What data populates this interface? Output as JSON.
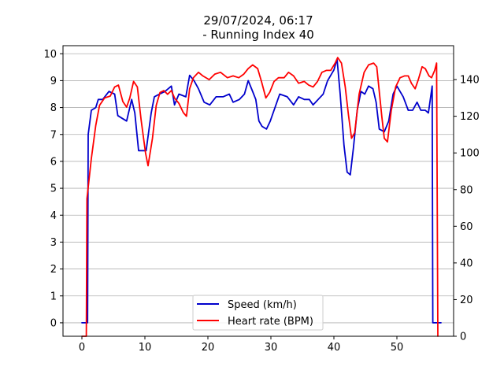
{
  "chart_data": {
    "type": "line",
    "title": "29/07/2024, 06:17",
    "subtitle": "- Running Index 40",
    "xlabel": "",
    "ylabel": "",
    "xlim": [
      -3,
      59
    ],
    "ylim_left": [
      -0.5,
      10.3
    ],
    "ylim_right": [
      0,
      158.5
    ],
    "x_ticks": [
      0,
      10,
      20,
      30,
      40,
      50
    ],
    "y_ticks_left": [
      0,
      1,
      2,
      3,
      4,
      5,
      6,
      7,
      8,
      9,
      10
    ],
    "y_ticks_right": [
      0,
      20,
      40,
      60,
      80,
      100,
      120,
      140
    ],
    "grid": "horizontal (left axis)",
    "legend_position": "bottom-center",
    "series": [
      {
        "name": "Speed (km/h)",
        "axis": "left",
        "color": "#0000cc",
        "points": [
          [
            0,
            0
          ],
          [
            0.9,
            0
          ],
          [
            1.0,
            7.0
          ],
          [
            1.5,
            7.9
          ],
          [
            2.2,
            8.0
          ],
          [
            2.6,
            8.3
          ],
          [
            3.3,
            8.3
          ],
          [
            4.3,
            8.6
          ],
          [
            5.2,
            8.5
          ],
          [
            5.7,
            7.7
          ],
          [
            6.4,
            7.6
          ],
          [
            7.1,
            7.5
          ],
          [
            7.9,
            8.3
          ],
          [
            8.4,
            7.8
          ],
          [
            9.0,
            6.4
          ],
          [
            9.5,
            6.4
          ],
          [
            10.2,
            6.4
          ],
          [
            11.0,
            7.8
          ],
          [
            11.5,
            8.4
          ],
          [
            12.3,
            8.5
          ],
          [
            13.2,
            8.6
          ],
          [
            14.2,
            8.8
          ],
          [
            14.7,
            8.1
          ],
          [
            15.4,
            8.5
          ],
          [
            16.5,
            8.4
          ],
          [
            17.1,
            9.2
          ],
          [
            17.8,
            9.0
          ],
          [
            18.5,
            8.7
          ],
          [
            19.4,
            8.2
          ],
          [
            20.3,
            8.1
          ],
          [
            21.3,
            8.4
          ],
          [
            22.4,
            8.4
          ],
          [
            23.4,
            8.5
          ],
          [
            24.0,
            8.2
          ],
          [
            25.0,
            8.3
          ],
          [
            25.8,
            8.5
          ],
          [
            26.4,
            9.0
          ],
          [
            27.1,
            8.6
          ],
          [
            27.6,
            8.3
          ],
          [
            28.1,
            7.5
          ],
          [
            28.6,
            7.3
          ],
          [
            29.3,
            7.2
          ],
          [
            29.9,
            7.5
          ],
          [
            30.5,
            7.9
          ],
          [
            31.4,
            8.5
          ],
          [
            32.6,
            8.4
          ],
          [
            33.6,
            8.1
          ],
          [
            34.4,
            8.4
          ],
          [
            35.3,
            8.3
          ],
          [
            36.1,
            8.3
          ],
          [
            36.7,
            8.1
          ],
          [
            37.5,
            8.3
          ],
          [
            38.3,
            8.5
          ],
          [
            39.0,
            9.0
          ],
          [
            40.0,
            9.4
          ],
          [
            40.5,
            9.8
          ],
          [
            41.0,
            8.5
          ],
          [
            41.6,
            6.6
          ],
          [
            42.1,
            5.6
          ],
          [
            42.6,
            5.5
          ],
          [
            43.1,
            6.5
          ],
          [
            43.7,
            7.9
          ],
          [
            44.3,
            8.6
          ],
          [
            44.9,
            8.5
          ],
          [
            45.5,
            8.8
          ],
          [
            46.2,
            8.7
          ],
          [
            46.7,
            8.2
          ],
          [
            47.2,
            7.2
          ],
          [
            48.0,
            7.1
          ],
          [
            48.7,
            7.5
          ],
          [
            49.4,
            8.5
          ],
          [
            50.0,
            8.8
          ],
          [
            51.0,
            8.4
          ],
          [
            51.8,
            7.9
          ],
          [
            52.5,
            7.9
          ],
          [
            53.2,
            8.2
          ],
          [
            53.8,
            7.9
          ],
          [
            54.5,
            7.9
          ],
          [
            55.0,
            7.8
          ],
          [
            55.6,
            8.8
          ],
          [
            55.7,
            0
          ],
          [
            57.0,
            0
          ]
        ]
      },
      {
        "name": "Heart rate (BPM)",
        "axis": "right",
        "color": "#ff0000",
        "points": [
          [
            0,
            0
          ],
          [
            0.7,
            0
          ],
          [
            0.8,
            75
          ],
          [
            1.5,
            97
          ],
          [
            2.2,
            115
          ],
          [
            2.8,
            126
          ],
          [
            3.6,
            130
          ],
          [
            4.5,
            131
          ],
          [
            5.2,
            136
          ],
          [
            5.8,
            137
          ],
          [
            6.5,
            128
          ],
          [
            7.1,
            125
          ],
          [
            7.6,
            130
          ],
          [
            8.2,
            139
          ],
          [
            8.8,
            136
          ],
          [
            9.4,
            118
          ],
          [
            10.1,
            100
          ],
          [
            10.5,
            93
          ],
          [
            11.2,
            108
          ],
          [
            11.8,
            126
          ],
          [
            12.4,
            133
          ],
          [
            13.0,
            134
          ],
          [
            13.6,
            132
          ],
          [
            14.2,
            134
          ],
          [
            14.7,
            130
          ],
          [
            15.4,
            127
          ],
          [
            16.1,
            122
          ],
          [
            16.6,
            120
          ],
          [
            17.1,
            135
          ],
          [
            17.7,
            141
          ],
          [
            18.5,
            144
          ],
          [
            19.2,
            142
          ],
          [
            20.2,
            140
          ],
          [
            21.1,
            143
          ],
          [
            22.0,
            144
          ],
          [
            23.1,
            141
          ],
          [
            24.0,
            142
          ],
          [
            24.9,
            141
          ],
          [
            25.7,
            143
          ],
          [
            26.4,
            146
          ],
          [
            27.1,
            148
          ],
          [
            27.9,
            146
          ],
          [
            28.5,
            139
          ],
          [
            29.2,
            130
          ],
          [
            29.8,
            133
          ],
          [
            30.5,
            139
          ],
          [
            31.2,
            141
          ],
          [
            32.1,
            141
          ],
          [
            32.8,
            144
          ],
          [
            33.6,
            142
          ],
          [
            34.4,
            138
          ],
          [
            35.3,
            139
          ],
          [
            36.0,
            137
          ],
          [
            36.7,
            136
          ],
          [
            37.4,
            139
          ],
          [
            38.1,
            144
          ],
          [
            38.8,
            145
          ],
          [
            39.5,
            145
          ],
          [
            40.2,
            149
          ],
          [
            40.6,
            152
          ],
          [
            41.2,
            149
          ],
          [
            41.8,
            136
          ],
          [
            42.3,
            121
          ],
          [
            42.8,
            108
          ],
          [
            43.3,
            111
          ],
          [
            44.0,
            132
          ],
          [
            44.8,
            144
          ],
          [
            45.5,
            148
          ],
          [
            46.3,
            149
          ],
          [
            46.8,
            147
          ],
          [
            47.1,
            137
          ],
          [
            47.6,
            120
          ],
          [
            48.0,
            108
          ],
          [
            48.5,
            106
          ],
          [
            49.1,
            123
          ],
          [
            49.8,
            136
          ],
          [
            50.5,
            141
          ],
          [
            51.2,
            142
          ],
          [
            51.8,
            142
          ],
          [
            52.3,
            138
          ],
          [
            52.9,
            135
          ],
          [
            53.4,
            140
          ],
          [
            54.0,
            147
          ],
          [
            54.5,
            146
          ],
          [
            55.1,
            142
          ],
          [
            55.5,
            141
          ],
          [
            56.0,
            145
          ],
          [
            56.3,
            149
          ],
          [
            56.5,
            0
          ]
        ]
      }
    ]
  }
}
